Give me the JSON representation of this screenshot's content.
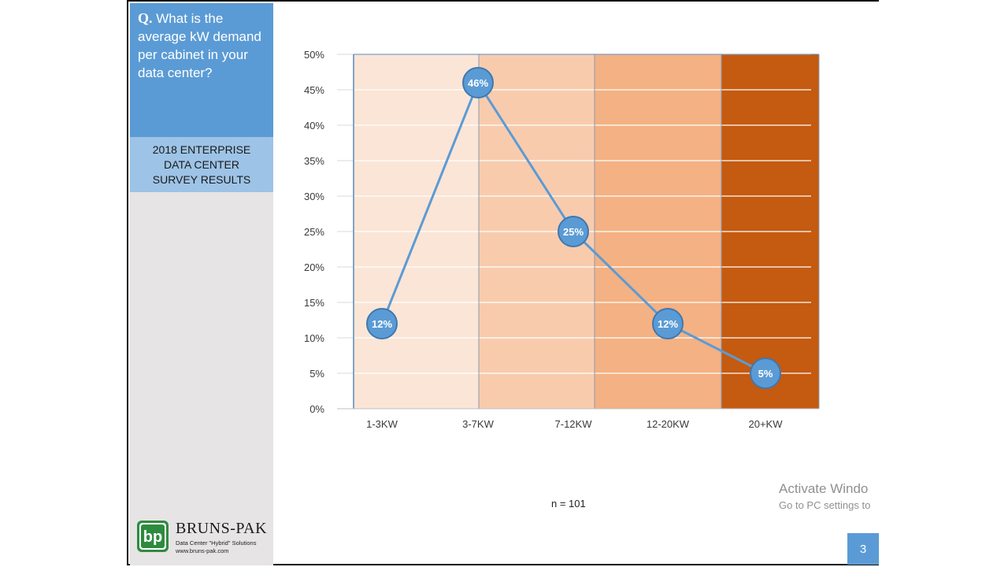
{
  "question": {
    "prefix": "Q.",
    "text": "What is the average kW demand per cabinet in your data center?"
  },
  "survey_label": "2018 ENTERPRISE\nDATA CENTER\nSURVEY RESULTS",
  "logo": {
    "initials": "bp",
    "name": "BRUNS-PAK",
    "tagline": "Data Center \"Hybrid\" Solutions",
    "url": "www.bruns-pak.com",
    "color": "#2e8b3e"
  },
  "sample_size": "n = 101",
  "watermark": {
    "title": "Activate Windo",
    "subtitle": "Go to PC settings to"
  },
  "page_number": "3",
  "colors": {
    "accent_blue": "#5b9bd5",
    "light_blue": "#9dc3e6",
    "band_colors": [
      "#fbe5d6",
      "#f8cbad",
      "#f4b183",
      "#c55a11"
    ]
  },
  "chart_data": {
    "type": "line",
    "categories": [
      "1-3KW",
      "3-7KW",
      "7-12KW",
      "12-20KW",
      "20+KW"
    ],
    "values": [
      12,
      46,
      25,
      12,
      5
    ],
    "data_labels": [
      "12%",
      "46%",
      "25%",
      "12%",
      "5%"
    ],
    "y_ticks": [
      "0%",
      "5%",
      "10%",
      "15%",
      "20%",
      "25%",
      "30%",
      "35%",
      "40%",
      "45%",
      "50%"
    ],
    "ylim": [
      0,
      50
    ],
    "grid": true,
    "title": "",
    "xlabel": "",
    "ylabel": ""
  }
}
